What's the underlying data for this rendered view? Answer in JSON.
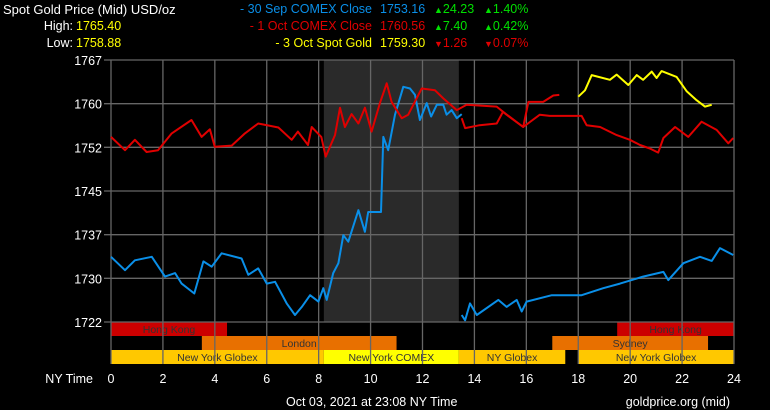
{
  "header": {
    "title": "Spot Gold Price (Mid) USD/oz",
    "high_label": "High:",
    "high_value": "1765.40",
    "low_label": "Low:",
    "low_value": "1758.88"
  },
  "legend": [
    {
      "label": "- 30 Sep COMEX Close",
      "value": "1753.16",
      "change": "24.23",
      "change_pct": "1.40%",
      "direction": "up",
      "color": "#0a8fe8"
    },
    {
      "label": "- 1 Oct COMEX Close",
      "value": "1760.56",
      "change": "7.40",
      "change_pct": "0.42%",
      "direction": "up",
      "color": "#e00000"
    },
    {
      "label": "- 3 Oct Spot Gold",
      "value": "1759.30",
      "change": "1.26",
      "change_pct": "0.07%",
      "direction": "down",
      "color": "#ffff00"
    }
  ],
  "colors": {
    "up": "#00e000",
    "down": "#e00000",
    "grid": "#666666",
    "comex_shade": "#2a2a2a",
    "hong_kong": "#cc0000",
    "london_sydney": "#e87000",
    "globex": "#ffc800",
    "comex": "#ffff00"
  },
  "footer": {
    "timestamp": "Oct 03, 2021 at 23:08 NY Time",
    "source": "goldprice.org (mid)"
  },
  "chart_data": {
    "type": "line",
    "xlabel": "NY Time",
    "xlim": [
      0,
      24
    ],
    "xticks": [
      "0",
      "2",
      "4",
      "6",
      "8",
      "10",
      "12",
      "14",
      "16",
      "18",
      "20",
      "22",
      "24"
    ],
    "ylim": [
      1722.5,
      1767.5
    ],
    "yticks": [
      "1722",
      "1730",
      "1737",
      "1745",
      "1752",
      "1760",
      "1767"
    ],
    "grid": true,
    "shaded_range": [
      8.2,
      13.4
    ],
    "series": [
      {
        "name": "30 Sep COMEX Close",
        "color": "#0a8fe8",
        "segments": [
          [
            [
              0,
              1733.7
            ],
            [
              0.54,
              1731.4
            ],
            [
              0.92,
              1733.1
            ],
            [
              1.57,
              1733.7
            ],
            [
              2.08,
              1730.3
            ],
            [
              2.47,
              1730.9
            ],
            [
              2.72,
              1729.1
            ],
            [
              3.21,
              1727.4
            ],
            [
              3.56,
              1732.9
            ],
            [
              3.88,
              1732.0
            ],
            [
              4.26,
              1734.3
            ],
            [
              5.03,
              1733.4
            ],
            [
              5.29,
              1730.6
            ],
            [
              5.67,
              1731.7
            ],
            [
              6.0,
              1729.1
            ],
            [
              6.32,
              1729.4
            ],
            [
              6.77,
              1725.7
            ],
            [
              7.09,
              1723.7
            ],
            [
              7.35,
              1725.1
            ],
            [
              7.67,
              1727.1
            ],
            [
              7.99,
              1726.0
            ],
            [
              8.18,
              1728.3
            ],
            [
              8.31,
              1726.3
            ],
            [
              8.56,
              1730.9
            ],
            [
              8.76,
              1732.6
            ],
            [
              8.95,
              1737.4
            ],
            [
              9.14,
              1736.3
            ],
            [
              9.53,
              1741.7
            ],
            [
              9.78,
              1738.0
            ],
            [
              9.91,
              1741.4
            ],
            [
              10.4,
              1741.4
            ],
            [
              10.49,
              1754.3
            ],
            [
              10.68,
              1752.0
            ],
            [
              10.94,
              1758.1
            ],
            [
              11.26,
              1762.9
            ],
            [
              11.52,
              1762.6
            ],
            [
              11.71,
              1761.5
            ],
            [
              11.9,
              1757.2
            ],
            [
              12.16,
              1760.1
            ],
            [
              12.33,
              1757.8
            ],
            [
              12.55,
              1759.8
            ],
            [
              12.8,
              1759.8
            ],
            [
              12.93,
              1758.1
            ],
            [
              13.12,
              1758.9
            ],
            [
              13.32,
              1757.5
            ],
            [
              13.51,
              1758.2
            ]
          ],
          [
            [
              13.51,
              1723.7
            ],
            [
              13.64,
              1722.8
            ],
            [
              13.83,
              1725.7
            ],
            [
              14.09,
              1723.7
            ],
            [
              14.92,
              1726.3
            ],
            [
              15.24,
              1725.1
            ],
            [
              15.63,
              1726.3
            ],
            [
              15.82,
              1724.3
            ],
            [
              16.01,
              1726.0
            ],
            [
              16.98,
              1727.1
            ],
            [
              18.13,
              1727.1
            ],
            [
              18.96,
              1728.3
            ],
            [
              19.61,
              1729.1
            ],
            [
              20.5,
              1730.3
            ],
            [
              21.28,
              1731.1
            ],
            [
              21.47,
              1729.7
            ],
            [
              22.05,
              1732.6
            ],
            [
              22.69,
              1733.7
            ],
            [
              23.14,
              1733.0
            ],
            [
              23.46,
              1735.2
            ],
            [
              23.97,
              1734.0
            ]
          ]
        ]
      },
      {
        "name": "1 Oct COMEX Close",
        "color": "#e00000",
        "segments": [
          [
            [
              0,
              1754.3
            ],
            [
              0.54,
              1752.0
            ],
            [
              0.92,
              1753.8
            ],
            [
              1.37,
              1751.7
            ],
            [
              1.81,
              1752.0
            ],
            [
              2.34,
              1754.9
            ],
            [
              3.1,
              1757.2
            ],
            [
              3.49,
              1754.3
            ],
            [
              3.81,
              1755.6
            ],
            [
              4.0,
              1752.6
            ],
            [
              4.65,
              1752.8
            ],
            [
              5.16,
              1754.9
            ],
            [
              5.67,
              1756.6
            ],
            [
              6.45,
              1755.9
            ],
            [
              6.96,
              1753.8
            ],
            [
              7.2,
              1755.2
            ],
            [
              7.59,
              1752.9
            ],
            [
              7.73,
              1756.0
            ],
            [
              8.1,
              1754.3
            ],
            [
              8.27,
              1750.9
            ],
            [
              8.63,
              1754.6
            ],
            [
              8.82,
              1759.3
            ],
            [
              9.01,
              1756.0
            ],
            [
              9.27,
              1758.2
            ],
            [
              9.53,
              1756.6
            ],
            [
              9.78,
              1759.3
            ],
            [
              10.04,
              1755.2
            ],
            [
              10.36,
              1760.1
            ],
            [
              10.62,
              1763.5
            ],
            [
              10.81,
              1760.3
            ],
            [
              11.2,
              1757.5
            ],
            [
              11.45,
              1758.1
            ],
            [
              11.97,
              1762.6
            ],
            [
              12.48,
              1762.3
            ],
            [
              12.8,
              1760.9
            ],
            [
              13.32,
              1758.9
            ],
            [
              13.7,
              1759.8
            ],
            [
              14.86,
              1759.5
            ],
            [
              15.24,
              1758.1
            ],
            [
              15.88,
              1756.0
            ],
            [
              16.08,
              1760.3
            ],
            [
              16.65,
              1760.3
            ],
            [
              17.04,
              1761.4
            ],
            [
              17.27,
              1761.5
            ]
          ],
          [
            [
              13.51,
              1757.5
            ],
            [
              13.64,
              1755.8
            ],
            [
              14.2,
              1756.3
            ],
            [
              14.86,
              1756.6
            ],
            [
              15.1,
              1758.6
            ],
            [
              15.88,
              1756.0
            ],
            [
              16.52,
              1758.1
            ],
            [
              16.9,
              1757.9
            ],
            [
              18.13,
              1757.9
            ],
            [
              18.32,
              1756.3
            ],
            [
              18.84,
              1756.0
            ],
            [
              19.48,
              1754.6
            ],
            [
              19.99,
              1753.8
            ],
            [
              20.38,
              1752.9
            ],
            [
              20.76,
              1752.3
            ],
            [
              21.08,
              1751.6
            ],
            [
              21.28,
              1754.1
            ],
            [
              21.73,
              1756.0
            ],
            [
              22.24,
              1754.3
            ],
            [
              22.75,
              1756.9
            ],
            [
              23.33,
              1755.5
            ],
            [
              23.78,
              1753.2
            ],
            [
              23.97,
              1754.1
            ]
          ]
        ]
      },
      {
        "name": "3 Oct Spot Gold",
        "color": "#ffff00",
        "segments": [
          [
            [
              18.0,
              1761.2
            ],
            [
              18.26,
              1762.3
            ],
            [
              18.52,
              1764.9
            ],
            [
              19.22,
              1764.1
            ],
            [
              19.48,
              1765.0
            ],
            [
              19.93,
              1763.2
            ],
            [
              20.25,
              1764.9
            ],
            [
              20.5,
              1764.1
            ],
            [
              20.83,
              1765.5
            ],
            [
              21.02,
              1764.4
            ],
            [
              21.21,
              1765.6
            ],
            [
              21.79,
              1764.6
            ],
            [
              22.18,
              1762.1
            ],
            [
              22.56,
              1760.6
            ],
            [
              22.88,
              1759.5
            ],
            [
              23.14,
              1759.8
            ]
          ]
        ]
      }
    ],
    "sessions": [
      {
        "label": "Hong Kong",
        "row": 0,
        "start": 0,
        "end": 4.47,
        "kind": "hong_kong"
      },
      {
        "label": "Hong Kong",
        "row": 0,
        "start": 19.5,
        "end": 24,
        "kind": "hong_kong"
      },
      {
        "label": "London",
        "row": 1,
        "start": 3.5,
        "end": 11.0,
        "kind": "london_sydney"
      },
      {
        "label": "Sydney",
        "row": 1,
        "start": 17.0,
        "end": 23.0,
        "kind": "london_sydney"
      },
      {
        "label": "New York Globex",
        "row": 2,
        "start": 0,
        "end": 8.2,
        "kind": "globex"
      },
      {
        "label": "New York COMEX",
        "row": 2,
        "start": 8.2,
        "end": 13.4,
        "kind": "comex"
      },
      {
        "label": "NY Globex",
        "row": 2,
        "start": 13.4,
        "end": 17.5,
        "kind": "globex"
      },
      {
        "label": "New York Globex",
        "row": 2,
        "start": 18.0,
        "end": 24,
        "kind": "globex"
      }
    ]
  }
}
